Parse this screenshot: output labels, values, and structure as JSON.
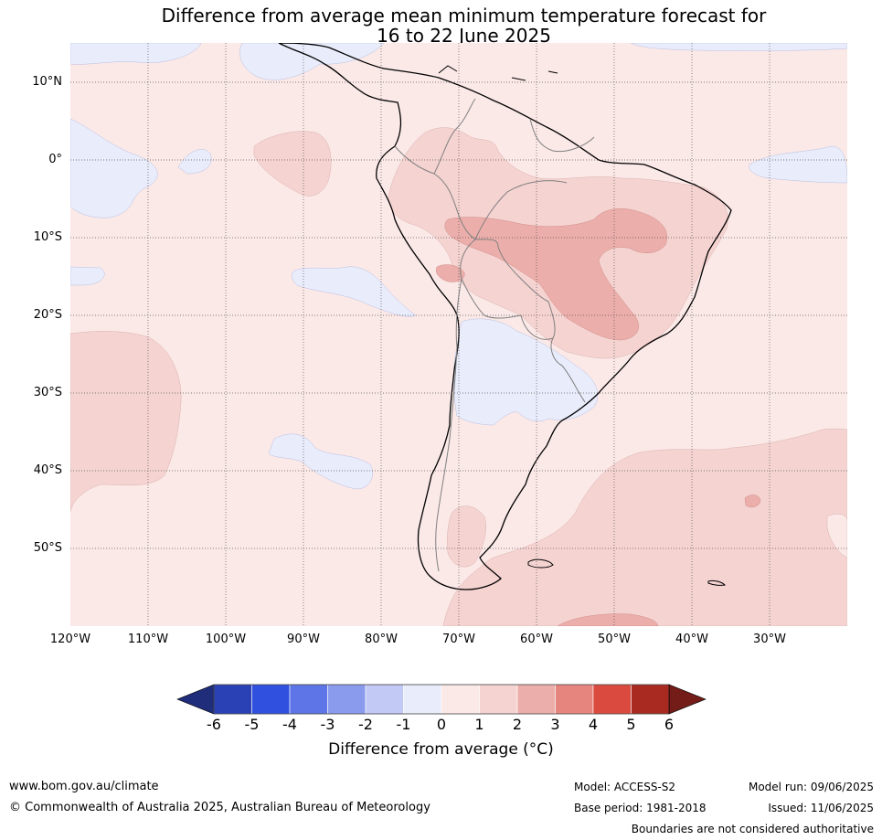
{
  "title": {
    "line1": "Difference from average mean minimum temperature forecast for",
    "line2": "16 to 22 June 2025"
  },
  "map": {
    "lat_labels": [
      "10°N",
      "0°",
      "10°S",
      "20°S",
      "30°S",
      "40°S",
      "50°S"
    ],
    "lon_labels": [
      "120°W",
      "110°W",
      "100°W",
      "90°W",
      "80°W",
      "70°W",
      "60°W",
      "50°W",
      "40°W",
      "30°W"
    ]
  },
  "colorbar": {
    "ticks": [
      "-6",
      "-5",
      "-4",
      "-3",
      "-2",
      "-1",
      "0",
      "1",
      "2",
      "3",
      "4",
      "5",
      "6"
    ],
    "colors": [
      "#1f2d7a",
      "#2a40b5",
      "#3050e0",
      "#5d75e6",
      "#8a9bee",
      "#c2c9f5",
      "#e9ecfb",
      "#fbe9e8",
      "#f5d3d1",
      "#ecaeaa",
      "#e6857e",
      "#db4a3f",
      "#a82a20",
      "#731c18"
    ],
    "label": "Difference from average (°C)"
  },
  "footer": {
    "url": "www.bom.gov.au/climate",
    "copyright": "© Commonwealth of Australia 2025, Australian Bureau of Meteorology",
    "model": "Model: ACCESS-S2",
    "base_period": "Base period: 1981-2018",
    "model_run": "Model run: 09/06/2025",
    "issued": "Issued: 11/06/2025",
    "disclaimer": "Boundaries are not considered authoritative"
  }
}
